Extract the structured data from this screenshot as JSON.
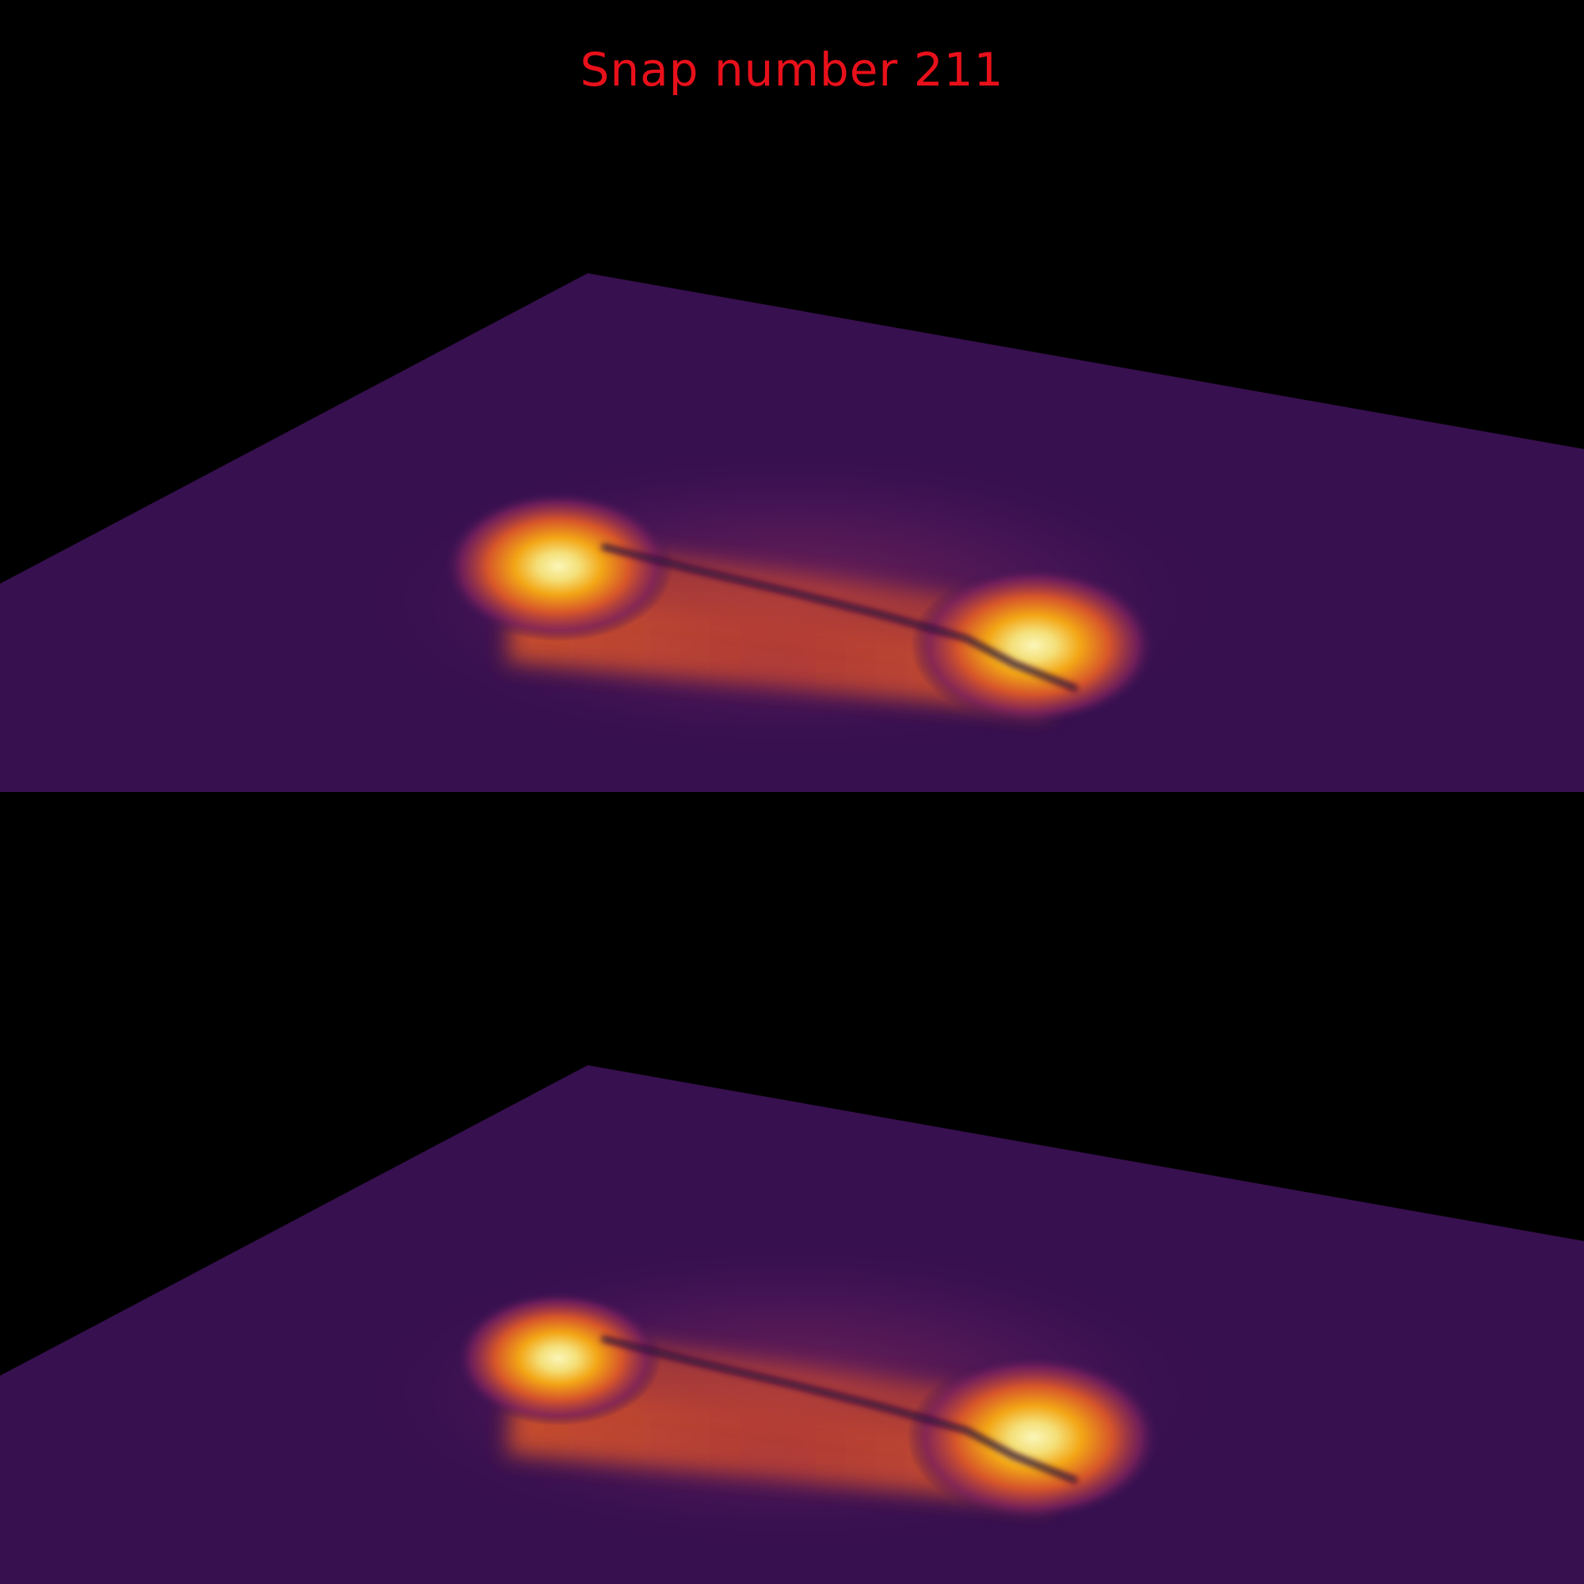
{
  "title": {
    "text": "Snap number 211",
    "color": "#e8101a"
  },
  "colors": {
    "background": "#000000",
    "plane_base": "#37104f",
    "colormap": "inferno",
    "hot_core": "#f4ef9a",
    "hot_mid": "#f2a30f",
    "warm": "#c9472a",
    "cool": "#6a1a5e"
  },
  "panels": [
    {
      "name": "upper-view"
    },
    {
      "name": "lower-view"
    }
  ]
}
